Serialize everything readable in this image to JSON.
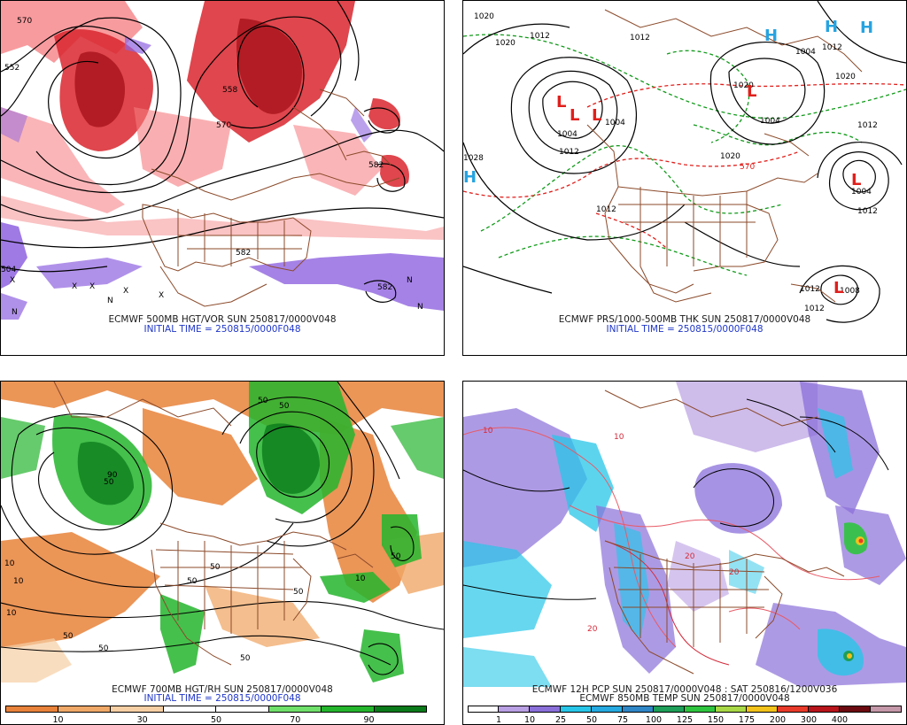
{
  "panels": [
    {
      "id": "p500",
      "caption_line1": "ECMWF 500MB HGT/VOR SUN 250817/0000V048",
      "caption_line2": "INITIAL TIME = 250815/0000F048",
      "contour_labels": [
        "570",
        "552",
        "558",
        "570",
        "582",
        "582",
        "504",
        "582"
      ],
      "symbols": [
        "X",
        "X",
        "X",
        "X",
        "X",
        "N",
        "N",
        "N",
        "N"
      ]
    },
    {
      "id": "psfc",
      "caption_line1": "ECMWF PRS/1000-500MB THK SUN 250817/0000V048",
      "caption_line2": "INITIAL TIME = 250815/0000F048",
      "contour_labels": [
        "1020",
        "1012",
        "1012",
        "1020",
        "1004",
        "1012",
        "1004",
        "1012",
        "1020",
        "1004",
        "1012",
        "1012",
        "1012",
        "1012",
        "1004",
        "1028",
        "570",
        "1020",
        "1020",
        "1012",
        "1004",
        "1008"
      ],
      "pressure_centers": [
        {
          "type": "L"
        },
        {
          "type": "L"
        },
        {
          "type": "L"
        },
        {
          "type": "L"
        },
        {
          "type": "L"
        },
        {
          "type": "L"
        },
        {
          "type": "H"
        },
        {
          "type": "H"
        },
        {
          "type": "H"
        },
        {
          "type": "H"
        }
      ]
    },
    {
      "id": "p700",
      "caption_line1": "ECMWF 700MB HGT/RH SUN 250817/0000V048",
      "caption_line2": "INITIAL TIME = 250815/0000F048",
      "contour_labels": [
        "10",
        "50",
        "50",
        "10",
        "50",
        "50",
        "50",
        "50",
        "10",
        "50",
        "50",
        "10",
        "90",
        "50",
        "50"
      ],
      "colorbar": {
        "labels": [
          "10",
          "30",
          "50",
          "70",
          "90"
        ],
        "colors": [
          "#e8823a",
          "#f0a868",
          "#f6cfa4",
          "#ffffff",
          "#ffffff",
          "#6fe06a",
          "#25b52d",
          "#0a7a1a"
        ]
      }
    },
    {
      "id": "ppcp",
      "caption_line1": "ECMWF 12H PCP SUN 250817/0000V048 : SAT 250816/1200V036",
      "caption_line2": "ECMWF 850MB TEMP SUN 250817/0000V048",
      "contour_labels": [
        "10",
        "20",
        "10",
        "20",
        "20"
      ],
      "colorbar": {
        "labels": [
          "1",
          "10",
          "25",
          "50",
          "75",
          "100",
          "125",
          "150",
          "175",
          "200",
          "300",
          "400"
        ],
        "colors": [
          "#ffffff",
          "#b99fe3",
          "#8a6fd9",
          "#27c6e8",
          "#25a9e0",
          "#2f86c6",
          "#1e9e58",
          "#2fc43f",
          "#a8d846",
          "#f2c21a",
          "#e83a2a",
          "#b8141c",
          "#6b0a10",
          "#c498a8"
        ]
      }
    }
  ],
  "colors": {
    "border_brown": "#8b4a2a",
    "contour": "#000000",
    "vort_red": "#d9262e",
    "vort_pink": "#f5797d",
    "vort_purple": "#8e63e0",
    "low_red": "#e0201c",
    "high_cyan": "#27a3e0",
    "thk_red": "#e0201c",
    "thk_green": "#119a1a"
  }
}
